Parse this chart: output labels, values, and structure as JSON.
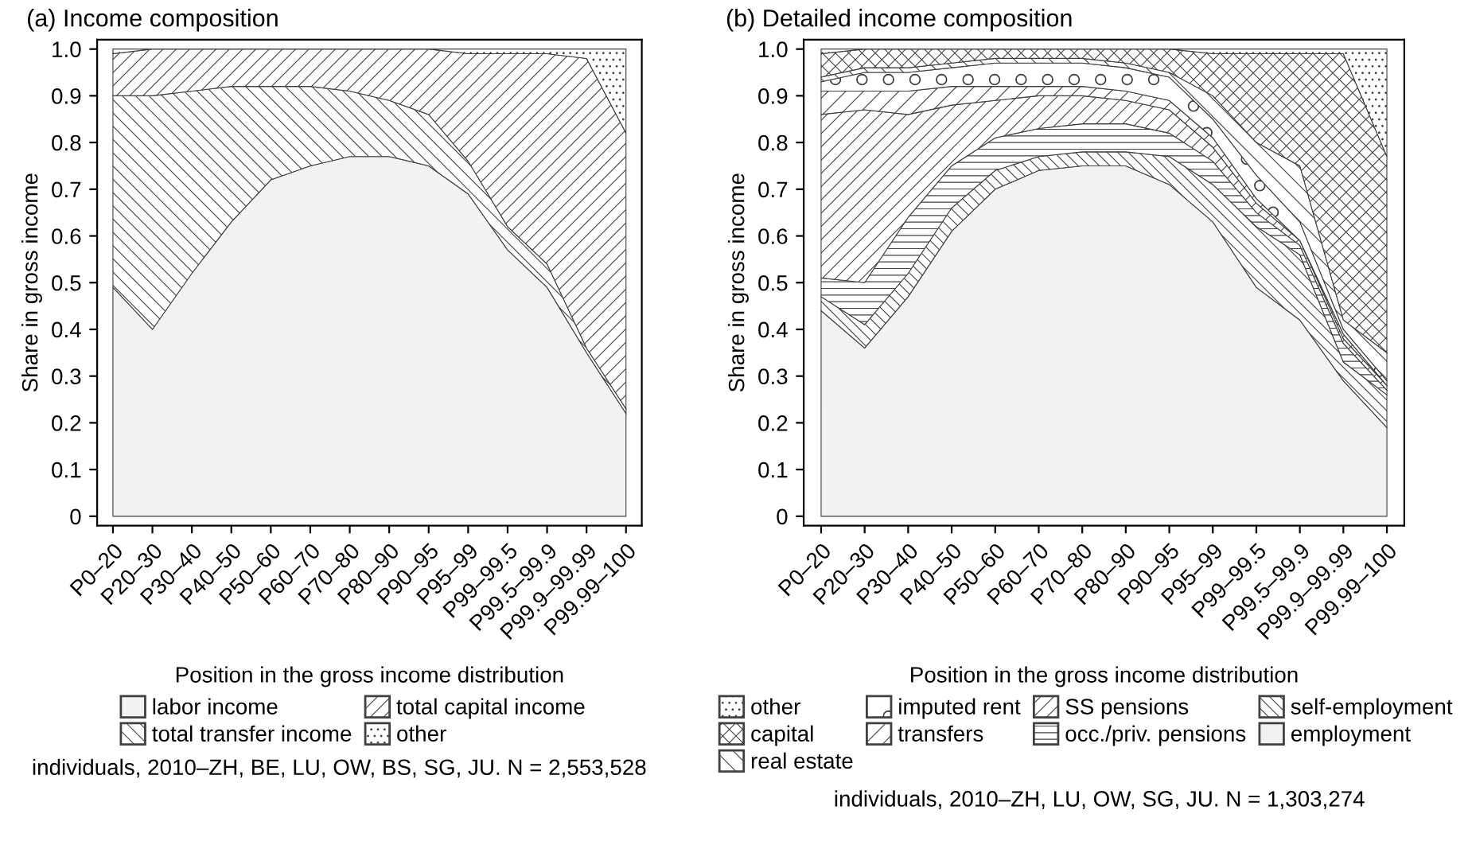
{
  "chart_data": [
    {
      "type": "area",
      "stacked": true,
      "title": "(a) Income composition",
      "xlabel": "Position in the gross income distribution",
      "ylabel": "Share in gross income",
      "categories": [
        "P0–20",
        "P20–30",
        "P30–40",
        "P40–50",
        "P50–60",
        "P60–70",
        "P70–80",
        "P80–90",
        "P90–95",
        "P95–99",
        "P99–99.5",
        "P99.5–99.9",
        "P99.9–99.99",
        "P99.99–100"
      ],
      "series": [
        {
          "name": "labor income",
          "color": "#f2f2f2",
          "values": [
            0.49,
            0.4,
            0.52,
            0.63,
            0.72,
            0.75,
            0.77,
            0.77,
            0.75,
            0.69,
            0.57,
            0.49,
            0.35,
            0.22
          ]
        },
        {
          "name": "total transfer income",
          "color": "#404040",
          "values": [
            0.41,
            0.5,
            0.39,
            0.29,
            0.2,
            0.17,
            0.14,
            0.12,
            0.11,
            0.07,
            0.05,
            0.05,
            0.01,
            0.01
          ]
        },
        {
          "name": "total capital income",
          "color": "#404040",
          "values": [
            0.09,
            0.1,
            0.09,
            0.08,
            0.08,
            0.08,
            0.09,
            0.11,
            0.14,
            0.23,
            0.37,
            0.45,
            0.62,
            0.59
          ]
        },
        {
          "name": "other",
          "color": "#404040",
          "values": [
            0.01,
            0,
            0,
            0,
            0,
            0,
            0,
            0,
            0,
            0.01,
            0.01,
            0.01,
            0.02,
            0.18
          ]
        }
      ],
      "ylim": [
        -0.02,
        1.02
      ],
      "yticks": [
        0,
        {
          "value": 0.1,
          "label": "0.1"
        },
        {
          "value": 0.2,
          "label": "0.2"
        },
        {
          "value": 0.3,
          "label": "0.3"
        },
        {
          "value": 0.4,
          "label": "0.4"
        },
        {
          "value": 0.5,
          "label": "0.5"
        },
        {
          "value": 0.6,
          "label": "0.6"
        },
        {
          "value": 0.7,
          "label": "0.7"
        },
        {
          "value": 0.8,
          "label": "0.8"
        },
        {
          "value": 0.9,
          "label": "0.9"
        },
        {
          "value": 1,
          "label": "1.0"
        }
      ],
      "grid": false,
      "legend": "bottom",
      "annotations": [
        "individuals, 2010–ZH, BE, LU, OW, BS, SG, JU. N = 2,553,528"
      ]
    },
    {
      "type": "area",
      "stacked": true,
      "title": "(b) Detailed income composition",
      "xlabel": "Position in the gross income distribution",
      "ylabel": "Share in gross income",
      "categories": [
        "P0–20",
        "P20–30",
        "P30–40",
        "P40–50",
        "P50–60",
        "P60–70",
        "P70–80",
        "P80–90",
        "P90–95",
        "P95–99",
        "P99–99.5",
        "P99.5–99.9",
        "P99.9–99.99",
        "P99.99–100"
      ],
      "series": [
        {
          "name": "employment",
          "color": "#f2f2f2",
          "values": [
            0.44,
            0.36,
            0.47,
            0.61,
            0.7,
            0.74,
            0.75,
            0.75,
            0.71,
            0.63,
            0.49,
            0.42,
            0.29,
            0.19
          ]
        },
        {
          "name": "self-employment",
          "color": "#404040",
          "values": [
            0.03,
            0.05,
            0.05,
            0.05,
            0.04,
            0.03,
            0.03,
            0.03,
            0.06,
            0.08,
            0.13,
            0.14,
            0.04,
            0.07
          ]
        },
        {
          "name": "occ./priv. pensions",
          "color": "#404040",
          "values": [
            0.04,
            0.09,
            0.12,
            0.09,
            0.07,
            0.06,
            0.06,
            0.06,
            0.05,
            0.05,
            0.03,
            0.02,
            0.04,
            0.01
          ]
        },
        {
          "name": "SS pensions",
          "color": "#404040",
          "values": [
            0.35,
            0.37,
            0.22,
            0.13,
            0.08,
            0.07,
            0.06,
            0.05,
            0.05,
            0.03,
            0.02,
            0.01,
            0.01,
            0.01
          ]
        },
        {
          "name": "transfers",
          "color": "#404040",
          "values": [
            0.05,
            0.04,
            0.05,
            0.04,
            0.03,
            0.02,
            0.02,
            0.02,
            0.02,
            0.02,
            0.01,
            0,
            0.01,
            0
          ]
        },
        {
          "name": "imputed rent",
          "color": "#404040",
          "values": [
            0.02,
            0.04,
            0.04,
            0.04,
            0.05,
            0.05,
            0.05,
            0.05,
            0.05,
            0.04,
            0.05,
            0.04,
            0.01,
            0.01
          ]
        },
        {
          "name": "real estate",
          "color": "#404040",
          "values": [
            0.01,
            0.01,
            0.01,
            0.01,
            0.01,
            0.01,
            0.01,
            0.01,
            0.01,
            0.05,
            0.07,
            0.12,
            0.02,
            0.06
          ]
        },
        {
          "name": "capital",
          "color": "#404040",
          "values": [
            0.05,
            0.04,
            0.04,
            0.03,
            0.02,
            0.02,
            0.02,
            0.03,
            0.05,
            0.09,
            0.19,
            0.24,
            0.57,
            0.42
          ]
        },
        {
          "name": "other",
          "color": "#404040",
          "values": [
            0.01,
            0,
            0,
            0,
            0,
            0,
            0,
            0,
            0,
            0.01,
            0.01,
            0.01,
            0.01,
            0.23
          ]
        }
      ],
      "ylim": [
        -0.02,
        1.02
      ],
      "yticks": [
        0,
        {
          "value": 0.1,
          "label": "0.1"
        },
        {
          "value": 0.2,
          "label": "0.2"
        },
        {
          "value": 0.3,
          "label": "0.3"
        },
        {
          "value": 0.4,
          "label": "0.4"
        },
        {
          "value": 0.5,
          "label": "0.5"
        },
        {
          "value": 0.6,
          "label": "0.6"
        },
        {
          "value": 0.7,
          "label": "0.7"
        },
        {
          "value": 0.8,
          "label": "0.8"
        },
        {
          "value": 0.9,
          "label": "0.9"
        },
        {
          "value": 1,
          "label": "1.0"
        }
      ],
      "grid": false,
      "legend": "bottom",
      "annotations": [
        "individuals, 2010–ZH, LU, OW, SG, JU. N = 1,303,274"
      ]
    }
  ]
}
